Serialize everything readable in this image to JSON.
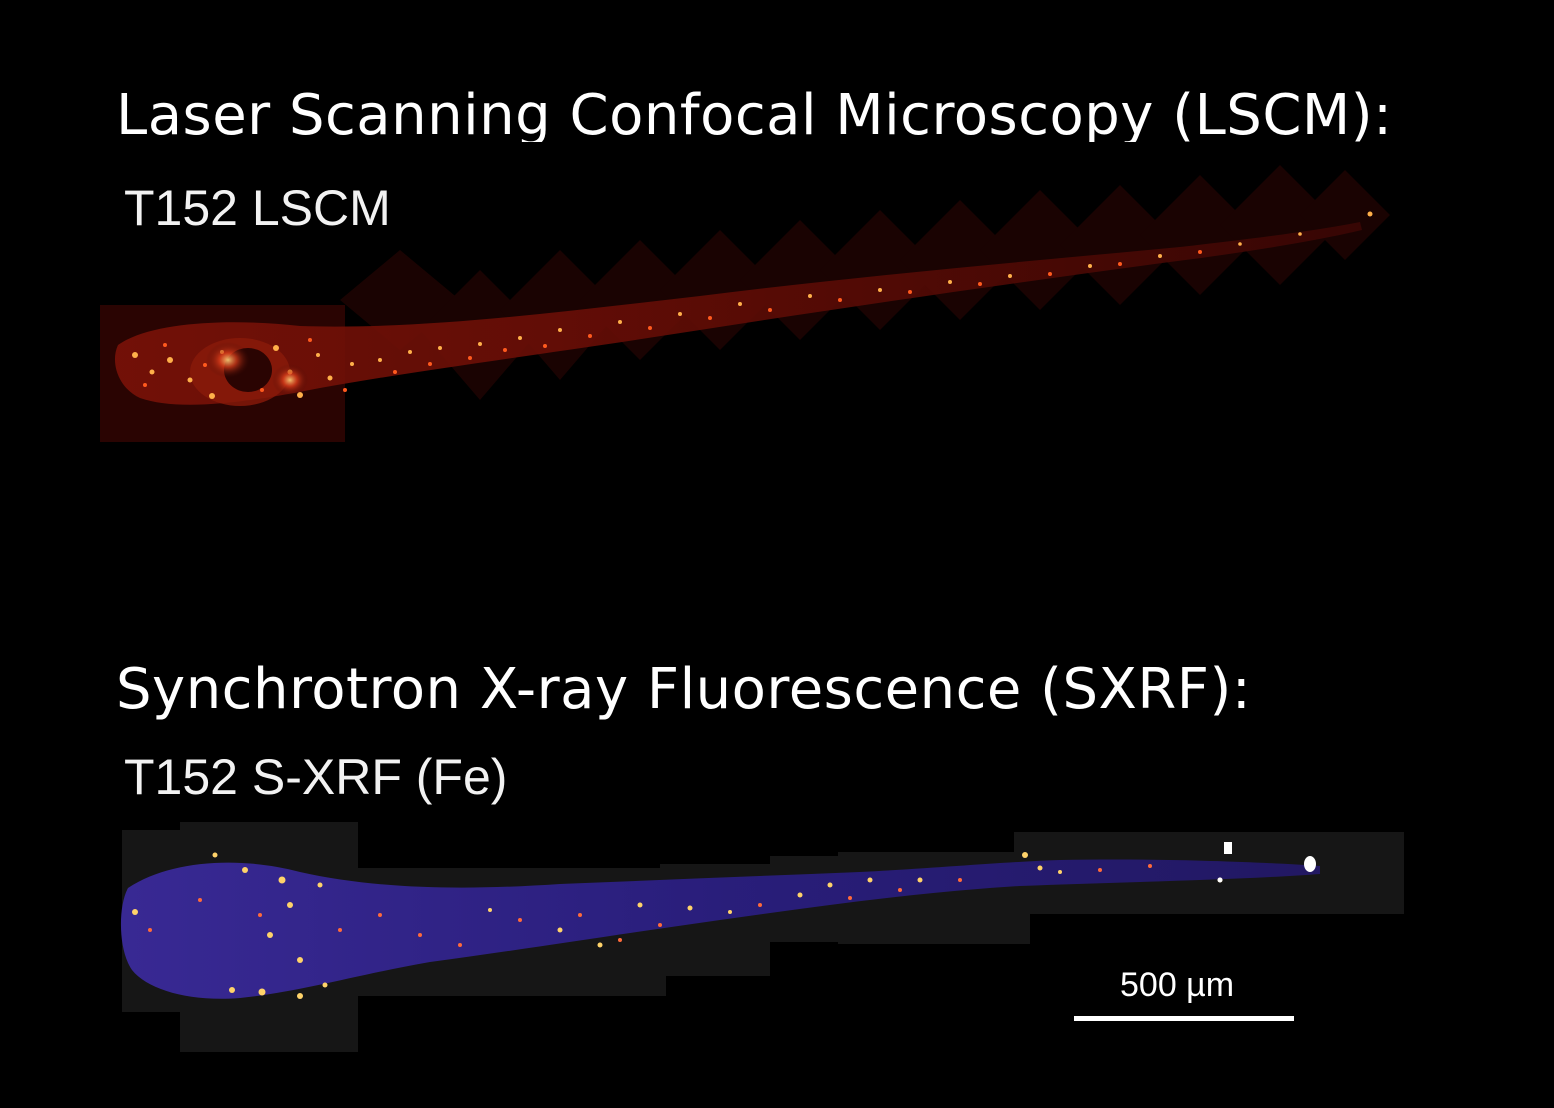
{
  "lscm": {
    "heading": "Laser Scanning Confocal Microscopy (LSCM):",
    "panel_label": "T152 LSCM",
    "colormap": "red-hot"
  },
  "sxrf": {
    "heading": "Synchrotron X-ray Fluorescence (SXRF):",
    "panel_label": "T152 S-XRF (Fe)",
    "colormap": "purple-fire"
  },
  "scalebar": {
    "label": "500 µm"
  },
  "colors": {
    "background": "#000000",
    "text": "#ffffff"
  }
}
